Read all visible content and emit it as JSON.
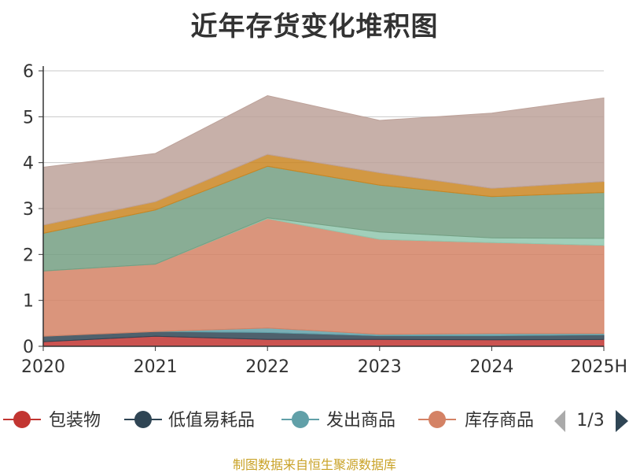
{
  "title": "近年存货变化堆积图",
  "source": "制图数据来自恒生聚源数据库",
  "legend": {
    "page": "1/3",
    "items": [
      {
        "name": "包装物",
        "color": "#c23531"
      },
      {
        "name": "低值易耗品",
        "color": "#2f4554"
      },
      {
        "name": "发出商品",
        "color": "#61a0a8"
      },
      {
        "name": "库存商品",
        "color": "#d48265"
      }
    ]
  },
  "chart_data": {
    "type": "area",
    "stacked": true,
    "categories": [
      "2020",
      "2021",
      "2022",
      "2023",
      "2024",
      "2025H"
    ],
    "ylim": [
      0,
      6
    ],
    "yticks": [
      0,
      1,
      2,
      3,
      4,
      5,
      6
    ],
    "grid": true,
    "legend_position": "bottom",
    "series": [
      {
        "name": "包装物",
        "color": "#c23531",
        "values": [
          0.1,
          0.22,
          0.15,
          0.15,
          0.14,
          0.15
        ]
      },
      {
        "name": "低值易耗品",
        "color": "#2f4554",
        "values": [
          0.12,
          0.1,
          0.15,
          0.08,
          0.09,
          0.1
        ]
      },
      {
        "name": "发出商品",
        "color": "#61a0a8",
        "values": [
          0.0,
          0.0,
          0.1,
          0.03,
          0.05,
          0.03
        ]
      },
      {
        "name": "库存商品",
        "color": "#d48265",
        "values": [
          1.42,
          1.47,
          2.38,
          2.07,
          1.98,
          1.92
        ]
      },
      {
        "color": "#91c7ae",
        "values": [
          0.0,
          0.0,
          0.02,
          0.16,
          0.1,
          0.15
        ]
      },
      {
        "color": "#749f83",
        "values": [
          0.82,
          1.18,
          1.12,
          1.02,
          0.9,
          1.0
        ]
      },
      {
        "color": "#ca8622",
        "values": [
          0.18,
          0.18,
          0.26,
          0.27,
          0.18,
          0.24
        ]
      },
      {
        "color": "#bda29a",
        "values": [
          1.26,
          1.05,
          1.28,
          1.14,
          1.64,
          1.82
        ]
      }
    ]
  }
}
